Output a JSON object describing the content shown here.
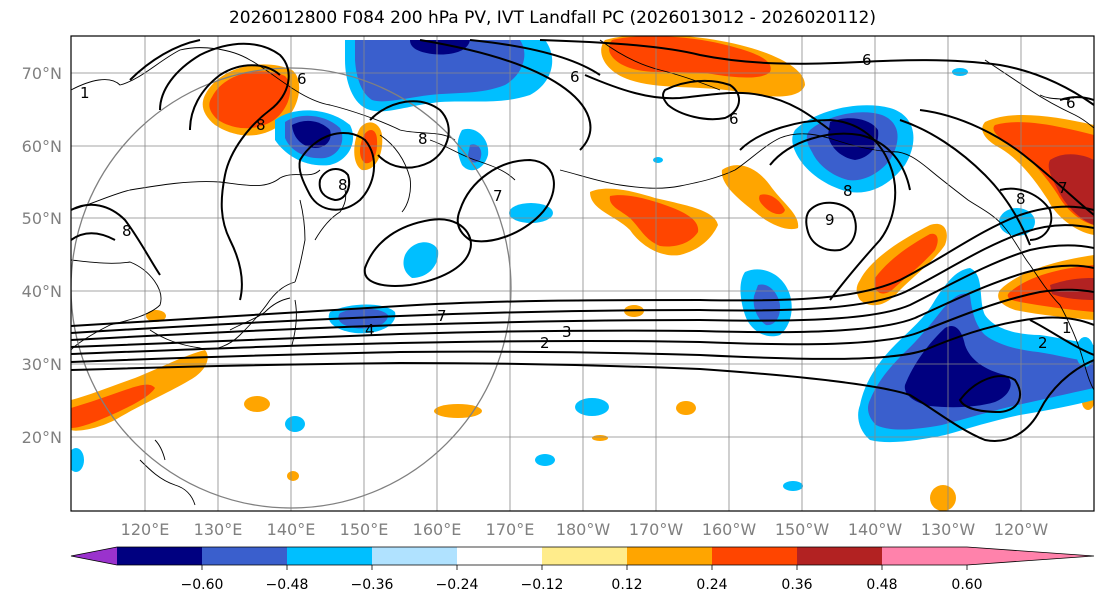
{
  "title": "2026012800 F084 200 hPa PV, IVT Landfall PC (2026013012 - 2026020112)",
  "lat_labels": [
    "70°N",
    "60°N",
    "50°N",
    "40°N",
    "30°N",
    "20°N"
  ],
  "lon_labels": [
    "120°E",
    "130°E",
    "140°E",
    "150°E",
    "160°E",
    "170°E",
    "180°W",
    "170°W",
    "160°W",
    "150°W",
    "140°W",
    "130°W",
    "120°W"
  ],
  "colorbar": {
    "ticks": [
      "−0.60",
      "−0.48",
      "−0.36",
      "−0.24",
      "−0.12",
      "0.12",
      "0.24",
      "0.36",
      "0.48",
      "0.60"
    ],
    "colors": [
      "#9a32cd",
      "#000080",
      "#3a5fcd",
      "#00bfff",
      "#b0e2ff",
      "#ffffff",
      "#ffec8b",
      "#ffa500",
      "#ff4500",
      "#b22222",
      "#ff82ab"
    ]
  },
  "contour_labels": [
    "6",
    "6",
    "6",
    "6",
    "6",
    "8",
    "8",
    "8",
    "8",
    "8",
    "8",
    "9",
    "7",
    "7",
    "7",
    "4",
    "3",
    "2",
    "1",
    "1",
    "2"
  ]
}
